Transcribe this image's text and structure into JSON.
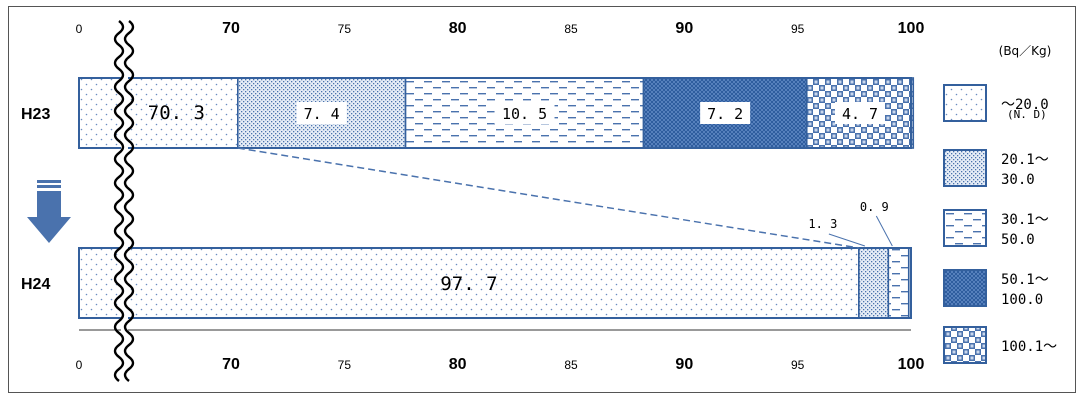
{
  "chart_data": {
    "type": "bar",
    "orientation": "horizontal-stacked-100",
    "unit": "(Bq／Kg)",
    "axis_ticks": [
      {
        "value": "0",
        "bold": false
      },
      {
        "value": "70",
        "bold": true
      },
      {
        "value": "75",
        "bold": false
      },
      {
        "value": "80",
        "bold": true
      },
      {
        "value": "85",
        "bold": false
      },
      {
        "value": "90",
        "bold": true
      },
      {
        "value": "95",
        "bold": false
      },
      {
        "value": "100",
        "bold": true
      }
    ],
    "axis_broken": true,
    "xlim": [
      0,
      100
    ],
    "series": [
      {
        "name": "〜20.0",
        "sublabel": "(N. D)",
        "pattern": "dots",
        "color": "#ffffff"
      },
      {
        "name": "20.1〜 30.0",
        "pattern": "fine",
        "color": "#dfe8f3"
      },
      {
        "name": "30.1〜 50.0",
        "pattern": "dashes",
        "color": "#ffffff"
      },
      {
        "name": "50.1〜 100.0",
        "pattern": "dense",
        "color": "#3e6fb0"
      },
      {
        "name": "100.1〜",
        "pattern": "checker",
        "color": "#ffffff"
      }
    ],
    "rows": [
      {
        "label": "H23",
        "values": [
          70.3,
          7.4,
          10.5,
          7.2,
          4.7
        ],
        "value_labels": [
          "70. 3",
          "7. 4",
          "10. 5",
          "7. 2",
          "4. 7"
        ]
      },
      {
        "label": "H24",
        "values": [
          97.7,
          1.3,
          0.9,
          0,
          0
        ],
        "value_labels": [
          "97. 7",
          "1. 3",
          "0. 9",
          "",
          ""
        ]
      }
    ]
  }
}
